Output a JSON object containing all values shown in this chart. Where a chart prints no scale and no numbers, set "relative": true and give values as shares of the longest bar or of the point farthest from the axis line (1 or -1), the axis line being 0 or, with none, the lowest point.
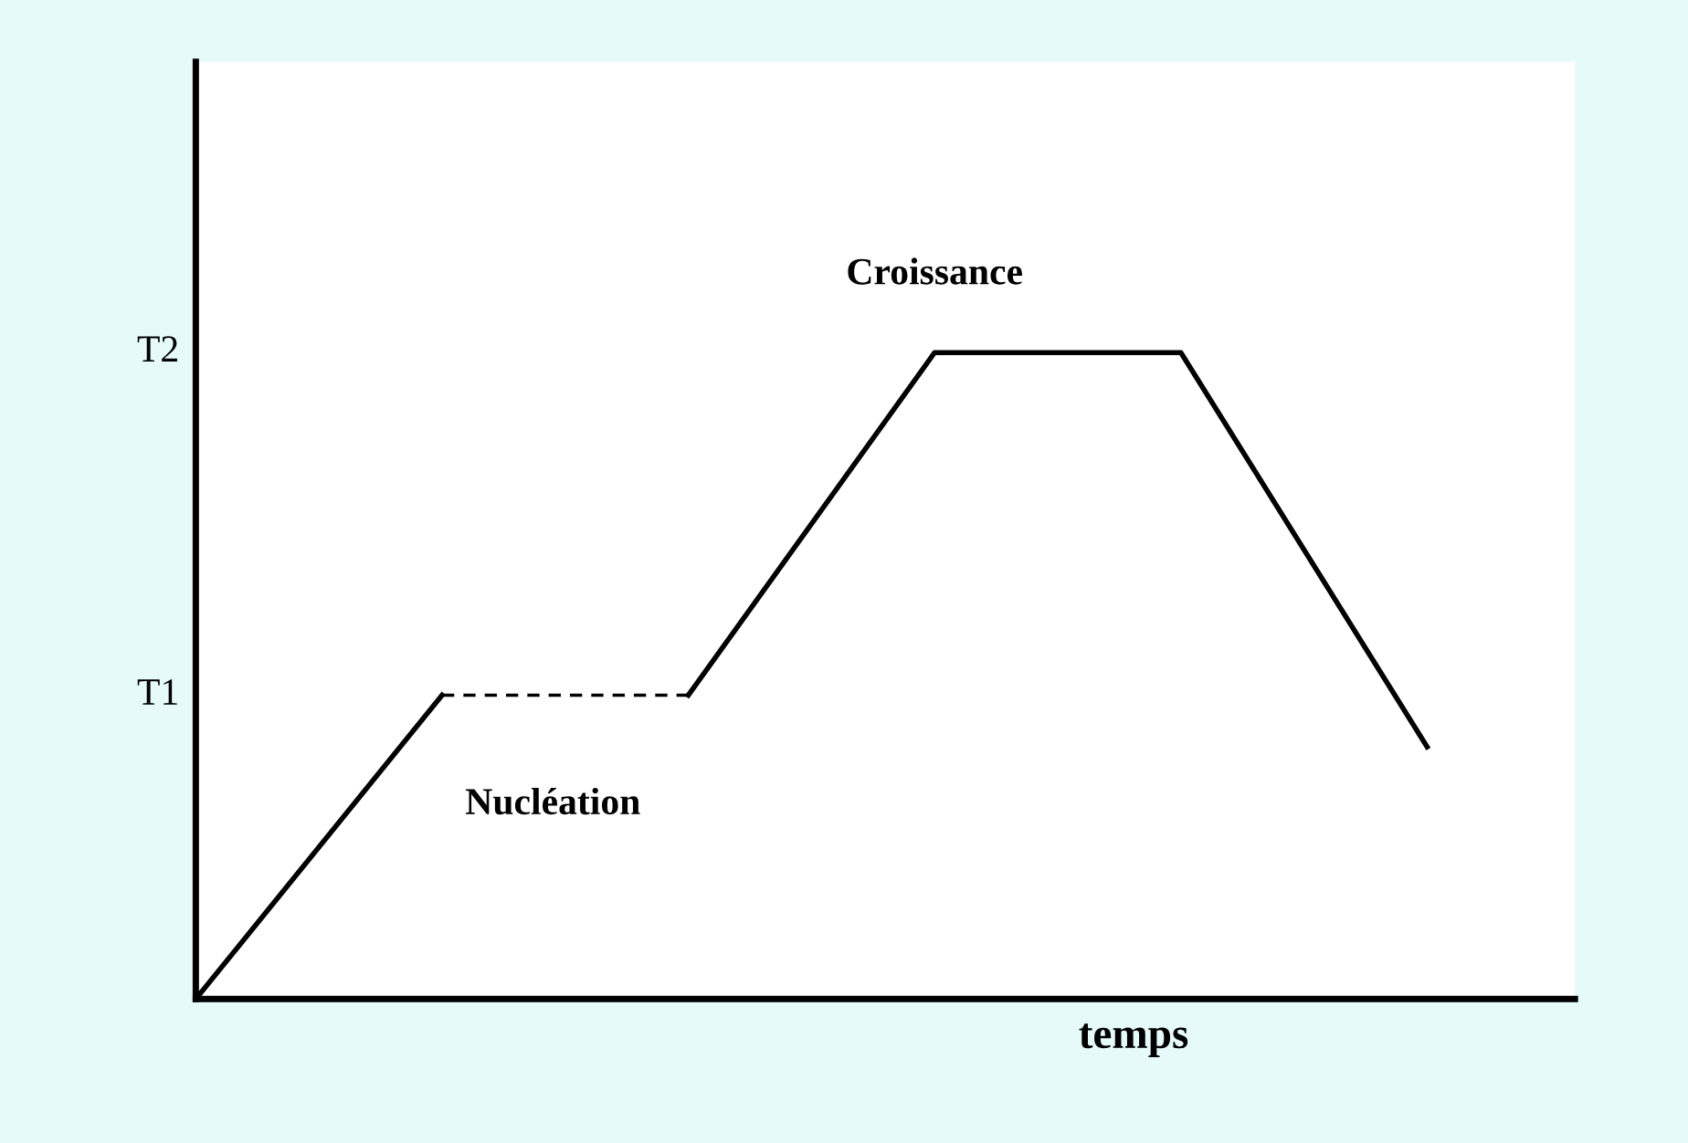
{
  "chart_data": {
    "type": "line",
    "relative": true,
    "xlabel": "temps",
    "categories": [
      null,
      null,
      null,
      null,
      null,
      null
    ],
    "series": [
      {
        "color": "#000000",
        "values": [
          0,
          0.47,
          null,
          null,
          null,
          null
        ]
      },
      {
        "color": "#000000",
        "line_style": "dashed",
        "values": [
          null,
          0.47,
          0.47,
          null,
          null,
          null
        ]
      },
      {
        "color": "#000000",
        "values": [
          null,
          null,
          0.47,
          1,
          1,
          0.39
        ]
      }
    ],
    "annotations": [
      "T1",
      "T2",
      "Nucléation",
      "Croissance"
    ],
    "grid": false,
    "legend": false
  }
}
